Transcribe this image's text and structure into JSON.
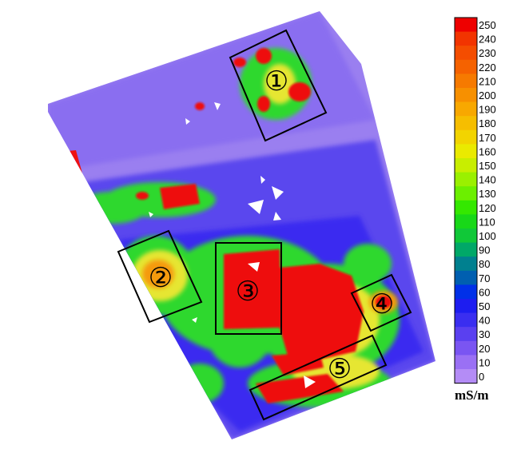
{
  "map": {
    "colors": {
      "background": "#9a7ff0",
      "low": "#5b4cf0",
      "mid": "#0b2df0",
      "green": "#2ed82e",
      "yellow": "#e6e632",
      "high": "#ee1111",
      "zone_box": "#000000"
    },
    "zones": [
      {
        "id": "1",
        "label": "①"
      },
      {
        "id": "2",
        "label": "②"
      },
      {
        "id": "3",
        "label": "③"
      },
      {
        "id": "4",
        "label": "④"
      },
      {
        "id": "5",
        "label": "⑤"
      }
    ]
  },
  "legend": {
    "unit": "mS/m",
    "labels": [
      "250",
      "240",
      "230",
      "220",
      "210",
      "200",
      "190",
      "180",
      "170",
      "160",
      "150",
      "140",
      "130",
      "120",
      "110",
      "100",
      "90",
      "80",
      "70",
      "60",
      "50",
      "40",
      "30",
      "20",
      "10",
      "0"
    ],
    "colors": [
      "#ee0000",
      "#f23400",
      "#f44d00",
      "#f56200",
      "#f67a00",
      "#f79000",
      "#f8a800",
      "#f6be00",
      "#f2d400",
      "#eaea00",
      "#c8ee00",
      "#9af000",
      "#6cef00",
      "#34e800",
      "#18d818",
      "#10c838",
      "#00a868",
      "#00808f",
      "#005fb0",
      "#0030e8",
      "#1d1df0",
      "#3a2ef0",
      "#5a40f0",
      "#7a55f2",
      "#9a70f4",
      "#b48cf6"
    ]
  }
}
